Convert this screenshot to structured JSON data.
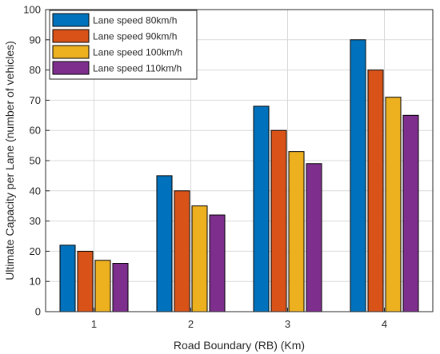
{
  "chart_data": {
    "type": "bar",
    "title": "",
    "xlabel": "Road Boundary (RB) (Km)",
    "ylabel": "Ultimate Capacity per Lane (number of vehicles)",
    "categories": [
      "1",
      "2",
      "3",
      "4"
    ],
    "ylim": [
      0,
      100
    ],
    "yticks": [
      0,
      10,
      20,
      30,
      40,
      50,
      60,
      70,
      80,
      90,
      100
    ],
    "grid": true,
    "legend_position": "top-left",
    "series": [
      {
        "name": "Lane speed 80km/h",
        "color": "#0072BD",
        "values": [
          22,
          45,
          68,
          90
        ]
      },
      {
        "name": "Lane speed 90km/h",
        "color": "#D95319",
        "values": [
          20,
          40,
          60,
          80
        ]
      },
      {
        "name": "Lane speed 100km/h",
        "color": "#EDB120",
        "values": [
          17,
          35,
          53,
          71
        ]
      },
      {
        "name": "Lane speed 110km/h",
        "color": "#7E2F8E",
        "values": [
          16,
          32,
          49,
          65
        ]
      }
    ]
  }
}
